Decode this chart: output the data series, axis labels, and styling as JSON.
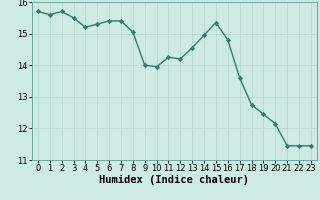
{
  "x": [
    0,
    1,
    2,
    3,
    4,
    5,
    6,
    7,
    8,
    9,
    10,
    11,
    12,
    13,
    14,
    15,
    16,
    17,
    18,
    19,
    20,
    21,
    22,
    23
  ],
  "y": [
    15.7,
    15.6,
    15.7,
    15.5,
    15.2,
    15.3,
    15.4,
    15.4,
    15.05,
    14.0,
    13.95,
    14.25,
    14.2,
    14.55,
    14.95,
    15.35,
    14.8,
    13.6,
    12.75,
    12.45,
    12.15,
    11.45,
    11.45,
    11.45
  ],
  "line_color": "#2e7d6e",
  "marker": "D",
  "marker_size": 2.2,
  "bg_color": "#ceeae4",
  "grid_color": "#b8d8d2",
  "xlabel": "Humidex (Indice chaleur)",
  "xlabel_fontsize": 7.5,
  "tick_fontsize": 6,
  "ylim": [
    11,
    16
  ],
  "yticks": [
    11,
    12,
    13,
    14,
    15,
    16
  ],
  "xticks": [
    0,
    1,
    2,
    3,
    4,
    5,
    6,
    7,
    8,
    9,
    10,
    11,
    12,
    13,
    14,
    15,
    16,
    17,
    18,
    19,
    20,
    21,
    22,
    23
  ],
  "line_width": 1.0
}
